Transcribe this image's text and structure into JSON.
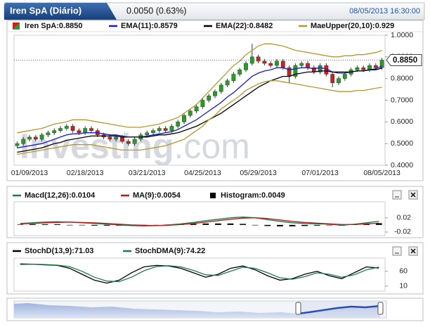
{
  "header": {
    "title": "Iren SpA (Diário)",
    "change": "0.0050 (0.63%)",
    "datetime": "08/05/2013 16:30:00"
  },
  "watermark": [
    "Investing",
    ".com"
  ],
  "chart_data": [
    {
      "type": "candlestick",
      "categories": [
        null,
        null,
        "01/09/2013",
        null,
        null,
        null,
        null,
        null,
        null,
        null,
        null,
        "02/18/2013",
        null,
        null,
        null,
        null,
        null,
        null,
        null,
        null,
        null,
        "03/21/2013",
        null,
        null,
        null,
        null,
        null,
        null,
        null,
        null,
        "04/25/2013",
        null,
        null,
        null,
        null,
        null,
        null,
        null,
        null,
        "05/29/2013",
        null,
        null,
        null,
        null,
        null,
        null,
        null,
        null,
        null,
        "07/01/2013",
        null,
        null,
        null,
        null,
        null,
        null,
        null,
        null,
        null,
        "08/05/2013"
      ],
      "series": [
        {
          "name": "Iren SpA:0.8850",
          "color": "#2a9a2a",
          "down_color": "#cc2020",
          "open": [
            0.49,
            0.5,
            0.52,
            0.53,
            0.52,
            0.54,
            0.55,
            0.56,
            0.57,
            0.58,
            0.56,
            0.55,
            0.57,
            0.56,
            0.54,
            0.53,
            0.52,
            0.53,
            0.51,
            0.5,
            0.52,
            0.54,
            0.55,
            0.56,
            0.57,
            0.56,
            0.58,
            0.6,
            0.63,
            0.65,
            0.67,
            0.7,
            0.72,
            0.74,
            0.77,
            0.79,
            0.82,
            0.84,
            0.87,
            0.9,
            0.88,
            0.87,
            0.86,
            0.88,
            0.85,
            0.81,
            0.86,
            0.87,
            0.85,
            0.83,
            0.86,
            0.82,
            0.78,
            0.8,
            0.82,
            0.84,
            0.85,
            0.84,
            0.86,
            0.85
          ],
          "high": [
            0.51,
            0.53,
            0.54,
            0.54,
            0.55,
            0.56,
            0.57,
            0.58,
            0.59,
            0.59,
            0.57,
            0.58,
            0.58,
            0.57,
            0.55,
            0.54,
            0.54,
            0.54,
            0.52,
            0.53,
            0.55,
            0.56,
            0.57,
            0.58,
            0.58,
            0.59,
            0.61,
            0.64,
            0.66,
            0.68,
            0.71,
            0.73,
            0.75,
            0.78,
            0.8,
            0.83,
            0.85,
            0.88,
            0.96,
            0.91,
            0.89,
            0.88,
            0.89,
            0.89,
            0.86,
            0.87,
            0.88,
            0.88,
            0.86,
            0.87,
            0.87,
            0.83,
            0.81,
            0.83,
            0.85,
            0.86,
            0.86,
            0.87,
            0.87,
            0.895
          ],
          "low": [
            0.48,
            0.49,
            0.51,
            0.51,
            0.51,
            0.53,
            0.54,
            0.55,
            0.56,
            0.55,
            0.54,
            0.54,
            0.55,
            0.53,
            0.52,
            0.51,
            0.51,
            0.5,
            0.49,
            0.49,
            0.51,
            0.53,
            0.54,
            0.55,
            0.55,
            0.55,
            0.57,
            0.59,
            0.62,
            0.64,
            0.66,
            0.69,
            0.71,
            0.73,
            0.76,
            0.78,
            0.81,
            0.83,
            0.86,
            0.87,
            0.86,
            0.85,
            0.85,
            0.84,
            0.78,
            0.8,
            0.85,
            0.84,
            0.82,
            0.82,
            0.81,
            0.76,
            0.77,
            0.79,
            0.81,
            0.83,
            0.83,
            0.83,
            0.84,
            0.84
          ],
          "close": [
            0.5,
            0.52,
            0.53,
            0.52,
            0.54,
            0.55,
            0.56,
            0.57,
            0.58,
            0.56,
            0.55,
            0.57,
            0.56,
            0.54,
            0.53,
            0.52,
            0.53,
            0.51,
            0.5,
            0.52,
            0.54,
            0.55,
            0.56,
            0.57,
            0.56,
            0.58,
            0.6,
            0.63,
            0.65,
            0.67,
            0.7,
            0.72,
            0.74,
            0.77,
            0.79,
            0.82,
            0.84,
            0.87,
            0.9,
            0.88,
            0.87,
            0.86,
            0.88,
            0.85,
            0.81,
            0.86,
            0.87,
            0.85,
            0.83,
            0.86,
            0.82,
            0.78,
            0.8,
            0.82,
            0.84,
            0.85,
            0.84,
            0.86,
            0.85,
            0.885
          ]
        },
        {
          "name": "EMA(11):0.8579",
          "color": "#1a1acc",
          "values": [
            0.48,
            0.485,
            0.49,
            0.495,
            0.5,
            0.51,
            0.52,
            0.53,
            0.54,
            0.545,
            0.545,
            0.55,
            0.55,
            0.55,
            0.545,
            0.54,
            0.54,
            0.535,
            0.53,
            0.53,
            0.53,
            0.535,
            0.54,
            0.545,
            0.55,
            0.555,
            0.565,
            0.58,
            0.595,
            0.61,
            0.63,
            0.65,
            0.67,
            0.69,
            0.715,
            0.735,
            0.76,
            0.785,
            0.81,
            0.825,
            0.835,
            0.84,
            0.85,
            0.85,
            0.84,
            0.845,
            0.85,
            0.85,
            0.845,
            0.85,
            0.845,
            0.83,
            0.825,
            0.825,
            0.83,
            0.835,
            0.835,
            0.84,
            0.845,
            0.8579
          ]
        },
        {
          "name": "EMA(22):0.8482",
          "color": "#000000",
          "values": [
            0.46,
            0.465,
            0.47,
            0.475,
            0.48,
            0.49,
            0.5,
            0.505,
            0.515,
            0.52,
            0.525,
            0.53,
            0.535,
            0.535,
            0.535,
            0.535,
            0.535,
            0.53,
            0.53,
            0.53,
            0.53,
            0.53,
            0.535,
            0.54,
            0.54,
            0.545,
            0.55,
            0.56,
            0.57,
            0.58,
            0.595,
            0.61,
            0.625,
            0.64,
            0.66,
            0.68,
            0.7,
            0.72,
            0.74,
            0.76,
            0.775,
            0.79,
            0.8,
            0.81,
            0.81,
            0.82,
            0.825,
            0.83,
            0.83,
            0.835,
            0.835,
            0.83,
            0.83,
            0.83,
            0.83,
            0.835,
            0.835,
            0.84,
            0.84,
            0.8482
          ]
        },
        {
          "name": "MaeUpper(20,10):0.929",
          "color": "#b8962e",
          "values": [
            0.55,
            0.555,
            0.56,
            0.565,
            0.57,
            0.58,
            0.59,
            0.595,
            0.6,
            0.61,
            0.61,
            0.61,
            0.605,
            0.6,
            0.595,
            0.59,
            0.585,
            0.58,
            0.575,
            0.575,
            0.575,
            0.58,
            0.585,
            0.59,
            0.6,
            0.61,
            0.62,
            0.64,
            0.66,
            0.68,
            0.71,
            0.74,
            0.77,
            0.8,
            0.83,
            0.86,
            0.88,
            0.91,
            0.93,
            0.95,
            0.96,
            0.96,
            0.955,
            0.95,
            0.94,
            0.93,
            0.925,
            0.92,
            0.915,
            0.91,
            0.905,
            0.9,
            0.9,
            0.905,
            0.905,
            0.91,
            0.91,
            0.915,
            0.92,
            0.929
          ]
        },
        {
          "color": "#b8962e",
          "values": [
            0.45,
            0.455,
            0.46,
            0.465,
            0.47,
            0.475,
            0.48,
            0.485,
            0.49,
            0.495,
            0.495,
            0.495,
            0.495,
            0.49,
            0.485,
            0.48,
            0.475,
            0.47,
            0.47,
            0.47,
            0.47,
            0.475,
            0.48,
            0.485,
            0.49,
            0.5,
            0.51,
            0.52,
            0.54,
            0.56,
            0.58,
            0.61,
            0.63,
            0.66,
            0.68,
            0.7,
            0.72,
            0.745,
            0.76,
            0.775,
            0.785,
            0.79,
            0.79,
            0.785,
            0.78,
            0.775,
            0.77,
            0.765,
            0.76,
            0.755,
            0.75,
            0.745,
            0.74,
            0.74,
            0.74,
            0.745,
            0.745,
            0.75,
            0.755,
            0.76
          ]
        }
      ],
      "ylim": [
        0.4,
        1.0
      ],
      "yticks": [
        {
          "value": 0.4,
          "label": "0.4000"
        },
        {
          "value": 0.5,
          "label": "0.5000"
        },
        {
          "value": 0.6,
          "label": "0.6000"
        },
        {
          "value": 0.7,
          "label": "0.7000"
        },
        {
          "value": 0.8,
          "label": "0.8000"
        },
        {
          "value": 0.9,
          "label": "0.9000"
        },
        {
          "value": 1.0,
          "label": "1.0000"
        }
      ],
      "price_tag": {
        "value": 0.885,
        "label": "0.8850"
      }
    },
    {
      "type": "combo",
      "series": [
        {
          "name": "Macd(12,26):0.0104",
          "color": "#1e7a4a",
          "values": [
            0.004,
            0.006,
            0.008,
            0.009,
            0.008,
            0.006,
            0.004,
            0.002,
            0.0,
            -0.002,
            -0.003,
            -0.002,
            0.0,
            0.003,
            0.007,
            0.012,
            0.016,
            0.02,
            0.022,
            0.02,
            0.015,
            0.01,
            0.006,
            0.004,
            0.003,
            0.002,
            -0.001,
            0.002,
            0.006,
            0.0104
          ]
        },
        {
          "name": "MA(9):0.0054",
          "color": "#b02020",
          "values": [
            0.003,
            0.004,
            0.006,
            0.007,
            0.008,
            0.007,
            0.006,
            0.004,
            0.002,
            0.0,
            -0.001,
            -0.002,
            -0.001,
            0.001,
            0.004,
            0.008,
            0.012,
            0.016,
            0.019,
            0.02,
            0.018,
            0.014,
            0.01,
            0.007,
            0.005,
            0.003,
            0.001,
            0.001,
            0.003,
            0.0054
          ]
        },
        {
          "name": "Histogram:0.0049",
          "color": "#000000",
          "style": "bar",
          "values": [
            0.001,
            0.002,
            0.002,
            0.002,
            0.0,
            -0.001,
            -0.002,
            -0.002,
            -0.002,
            -0.002,
            -0.002,
            0.0,
            0.001,
            0.002,
            0.003,
            0.004,
            0.004,
            0.004,
            0.003,
            0.0,
            -0.003,
            -0.004,
            -0.004,
            -0.003,
            -0.002,
            -0.001,
            -0.002,
            0.001,
            0.003,
            0.0049
          ]
        }
      ],
      "ylim": [
        -0.03,
        0.065
      ],
      "yticks": [
        -0.02,
        0.02
      ]
    },
    {
      "type": "line",
      "series": [
        {
          "name": "StochD(13,9):71.03",
          "color": "#000000",
          "values": [
            85,
            84,
            82,
            80,
            70,
            50,
            30,
            20,
            30,
            55,
            75,
            80,
            78,
            70,
            55,
            40,
            50,
            70,
            78,
            65,
            45,
            30,
            35,
            50,
            60,
            45,
            35,
            55,
            75,
            71.03
          ]
        },
        {
          "name": "StochDMA(9):74.22",
          "color": "#1e7a4a",
          "values": [
            83,
            84,
            83,
            81,
            76,
            60,
            40,
            27,
            25,
            40,
            62,
            76,
            79,
            75,
            63,
            48,
            46,
            60,
            74,
            70,
            55,
            38,
            33,
            42,
            55,
            50,
            40,
            48,
            65,
            74.22
          ]
        }
      ],
      "ylim": [
        0,
        100
      ],
      "yticks": [
        10,
        60
      ]
    }
  ]
}
